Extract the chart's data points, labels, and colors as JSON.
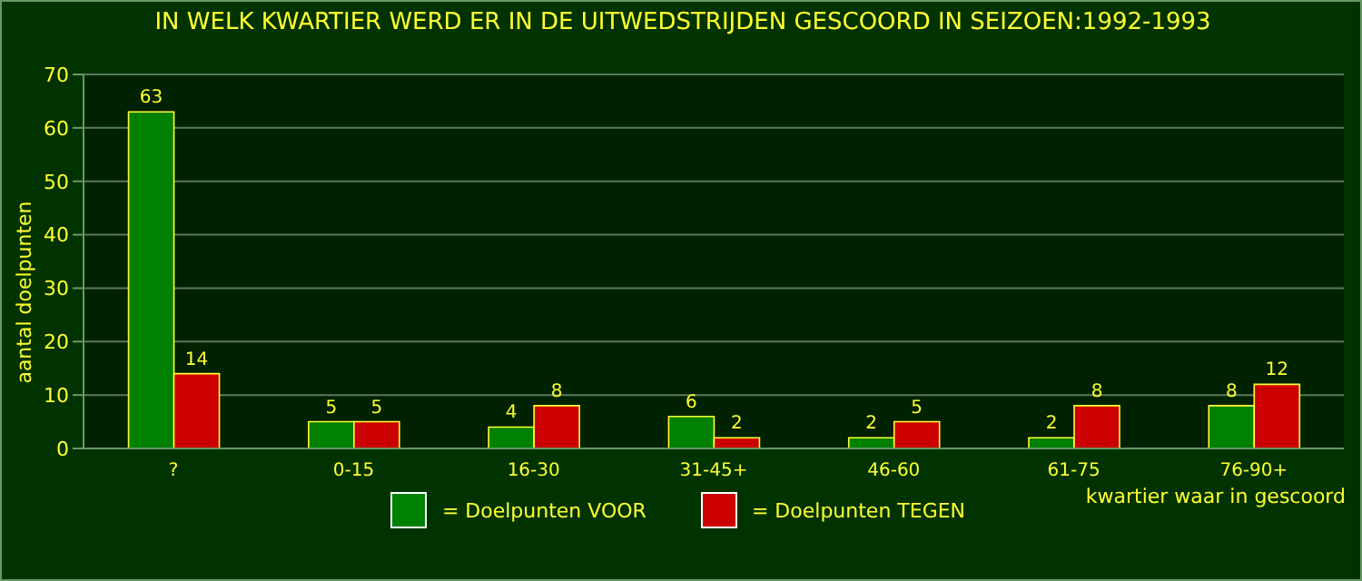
{
  "chart_data": {
    "type": "bar",
    "title": "IN WELK KWARTIER WERD ER IN DE UITWEDSTRIJDEN GESCOORD IN SEIZOEN:1992-1993",
    "xlabel": "kwartier waar in gescoord",
    "ylabel": "aantal doelpunten",
    "categories": [
      "?",
      "0-15",
      "16-30",
      "31-45+",
      "46-60",
      "61-75",
      "76-90+"
    ],
    "series": [
      {
        "name": "= Doelpunten VOOR",
        "color": "#008000",
        "values": [
          63,
          5,
          4,
          6,
          2,
          2,
          8
        ]
      },
      {
        "name": "= Doelpunten TEGEN",
        "color": "#cc0000",
        "values": [
          14,
          5,
          8,
          2,
          5,
          8,
          12
        ]
      }
    ],
    "ylim": [
      0,
      70
    ],
    "yticks": [
      0,
      10,
      20,
      30,
      40,
      50,
      60,
      70
    ],
    "grid": "y",
    "legend": "bottom",
    "data_labels": true
  }
}
